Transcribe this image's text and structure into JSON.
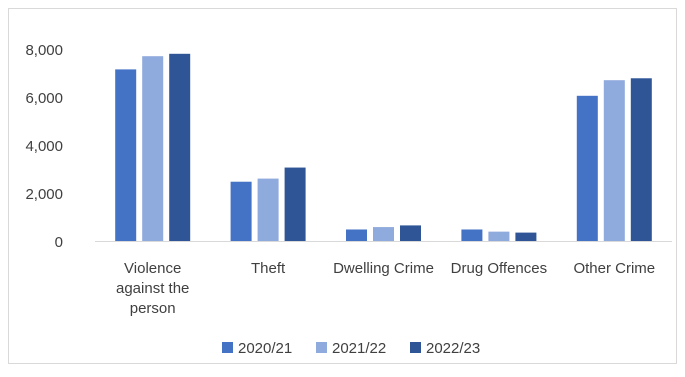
{
  "chart_data": {
    "type": "bar",
    "title": "",
    "xlabel": "",
    "ylabel": "",
    "categories": [
      [
        "Violence",
        "against the",
        "person"
      ],
      [
        "Theft"
      ],
      [
        "Dwelling Crime"
      ],
      [
        "Drug Offences"
      ],
      [
        "Other Crime"
      ]
    ],
    "series": [
      {
        "name": "2020/21",
        "color": "#4472C4",
        "values": [
          7150,
          2470,
          480,
          480,
          6050
        ]
      },
      {
        "name": "2021/22",
        "color": "#8FAADC",
        "values": [
          7700,
          2600,
          580,
          390,
          6700
        ]
      },
      {
        "name": "2022/23",
        "color": "#2F5597",
        "values": [
          7800,
          3060,
          650,
          350,
          6780
        ]
      }
    ],
    "ylim": [
      0,
      8000
    ],
    "yticks": [
      "0",
      "2,000",
      "4,000",
      "6,000",
      "8,000"
    ],
    "ytick_values": [
      0,
      2000,
      4000,
      6000,
      8000
    ],
    "grid": false,
    "legend_position": "bottom"
  }
}
